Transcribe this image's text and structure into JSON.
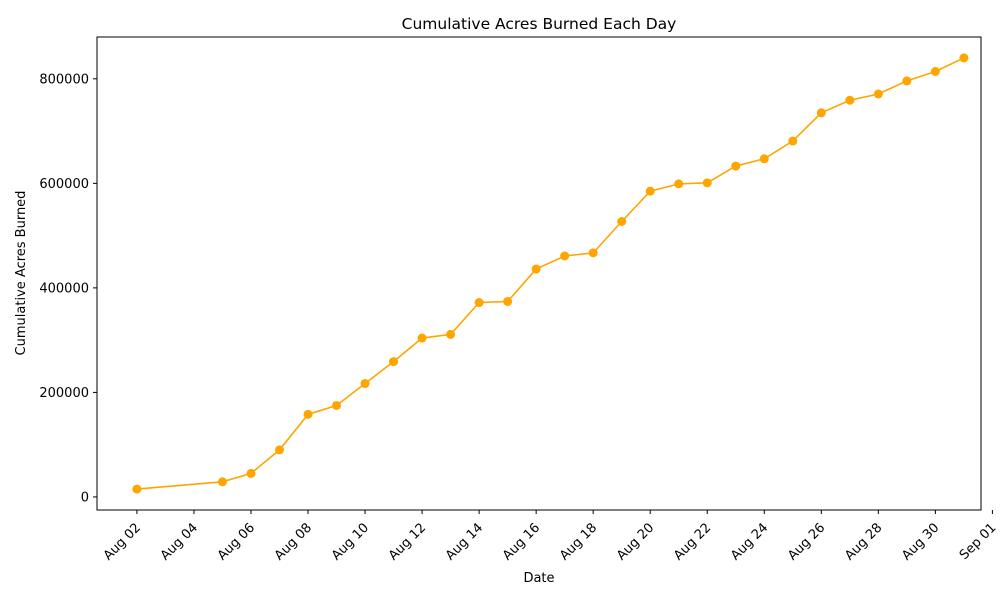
{
  "chart_data": {
    "type": "line",
    "title": "Cumulative Acres Burned Each Day",
    "xlabel": "Date",
    "ylabel": "Cumulative Acres Burned",
    "color": "#ffa500",
    "grid": false,
    "xlim_day": [
      0.6,
      31.6
    ],
    "ylim": [
      -25000,
      880000
    ],
    "x_ticks": [
      {
        "day": 2,
        "label": "Aug 02"
      },
      {
        "day": 4,
        "label": "Aug 04"
      },
      {
        "day": 6,
        "label": "Aug 06"
      },
      {
        "day": 8,
        "label": "Aug 08"
      },
      {
        "day": 10,
        "label": "Aug 10"
      },
      {
        "day": 12,
        "label": "Aug 12"
      },
      {
        "day": 14,
        "label": "Aug 14"
      },
      {
        "day": 16,
        "label": "Aug 16"
      },
      {
        "day": 18,
        "label": "Aug 18"
      },
      {
        "day": 20,
        "label": "Aug 20"
      },
      {
        "day": 22,
        "label": "Aug 22"
      },
      {
        "day": 24,
        "label": "Aug 24"
      },
      {
        "day": 26,
        "label": "Aug 26"
      },
      {
        "day": 28,
        "label": "Aug 28"
      },
      {
        "day": 30,
        "label": "Aug 30"
      },
      {
        "day": 32,
        "label": "Sep 01"
      }
    ],
    "y_ticks": [
      {
        "value": 0,
        "label": "0"
      },
      {
        "value": 200000,
        "label": "200000"
      },
      {
        "value": 400000,
        "label": "400000"
      },
      {
        "value": 600000,
        "label": "600000"
      },
      {
        "value": 800000,
        "label": "800000"
      }
    ],
    "points": [
      {
        "day": 2,
        "value": 15000
      },
      {
        "day": 5,
        "value": 29000
      },
      {
        "day": 6,
        "value": 45000
      },
      {
        "day": 7,
        "value": 90000
      },
      {
        "day": 8,
        "value": 158000
      },
      {
        "day": 9,
        "value": 175000
      },
      {
        "day": 10,
        "value": 217000
      },
      {
        "day": 11,
        "value": 259000
      },
      {
        "day": 12,
        "value": 304000
      },
      {
        "day": 13,
        "value": 311000
      },
      {
        "day": 14,
        "value": 372000
      },
      {
        "day": 15,
        "value": 374000
      },
      {
        "day": 16,
        "value": 436000
      },
      {
        "day": 17,
        "value": 461000
      },
      {
        "day": 18,
        "value": 467000
      },
      {
        "day": 19,
        "value": 527000
      },
      {
        "day": 20,
        "value": 585000
      },
      {
        "day": 21,
        "value": 599000
      },
      {
        "day": 22,
        "value": 601000
      },
      {
        "day": 23,
        "value": 633000
      },
      {
        "day": 24,
        "value": 647000
      },
      {
        "day": 25,
        "value": 681000
      },
      {
        "day": 26,
        "value": 735000
      },
      {
        "day": 27,
        "value": 759000
      },
      {
        "day": 28,
        "value": 771000
      },
      {
        "day": 29,
        "value": 796000
      },
      {
        "day": 30,
        "value": 814000
      },
      {
        "day": 31,
        "value": 840000
      }
    ]
  }
}
